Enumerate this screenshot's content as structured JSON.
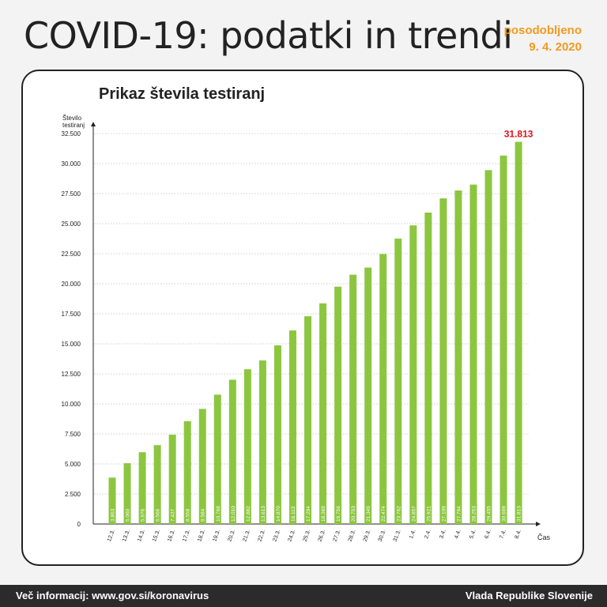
{
  "header": {
    "title": "COVID-19: podatki in trendi",
    "updated_label": "posodobljeno",
    "updated_date": "9. 4. 2020"
  },
  "footer": {
    "info": "Več informacij: www.gov.si/koronavirus",
    "source": "Vlada Republike Slovenije"
  },
  "colors": {
    "bar": "#8cc63f",
    "highlight": "#e0131a",
    "accent": "#f39a1e"
  },
  "chart_data": {
    "type": "bar",
    "title": "Prikaz števila testiranj",
    "ylabel": "Število testiranj",
    "xlabel": "Čas",
    "ylim": [
      0,
      32500
    ],
    "yticks": [
      0,
      2500,
      5000,
      7500,
      10000,
      12500,
      15000,
      17500,
      20000,
      22500,
      25000,
      27500,
      30000,
      32500
    ],
    "ytick_labels": [
      "0",
      "2.500",
      "5.000",
      "7.500",
      "10.000",
      "12.500",
      "15.000",
      "17.500",
      "20.000",
      "22.500",
      "25.000",
      "27.500",
      "30.000",
      "32.500"
    ],
    "grid": true,
    "categories": [
      "12.3.",
      "13.3.",
      "14.3.",
      "15.3.",
      "16.3.",
      "17.3.",
      "18.3.",
      "19.3.",
      "20.3.",
      "21.3.",
      "22.3.",
      "23.3.",
      "24.3.",
      "25.3.",
      "26.3.",
      "27.3.",
      "28.3.",
      "29.3.",
      "30.3.",
      "31.3.",
      "1.4.",
      "2.4.",
      "3.4.",
      "4.4.",
      "5.4.",
      "6.4.",
      "7.4.",
      "8.4."
    ],
    "values": [
      3863,
      5060,
      5976,
      6566,
      7437,
      8558,
      9584,
      10768,
      12010,
      12882,
      13613,
      14870,
      16113,
      17294,
      18369,
      19756,
      20753,
      21349,
      22474,
      23762,
      24857,
      25921,
      27109,
      27764,
      28253,
      29455,
      30669,
      31813
    ],
    "value_labels": [
      "3.863",
      "5.060",
      "5.976",
      "6.566",
      "7.437",
      "8.558",
      "9.584",
      "10.768",
      "12.010",
      "12.882",
      "13.613",
      "14.870",
      "16.113",
      "17.294",
      "18.369",
      "19.756",
      "20.753",
      "21.349",
      "22.474",
      "23.762",
      "24.857",
      "25.921",
      "27.109",
      "27.764",
      "28.253",
      "29.455",
      "30.669",
      "31.813"
    ],
    "highlight_label": "31.813"
  }
}
